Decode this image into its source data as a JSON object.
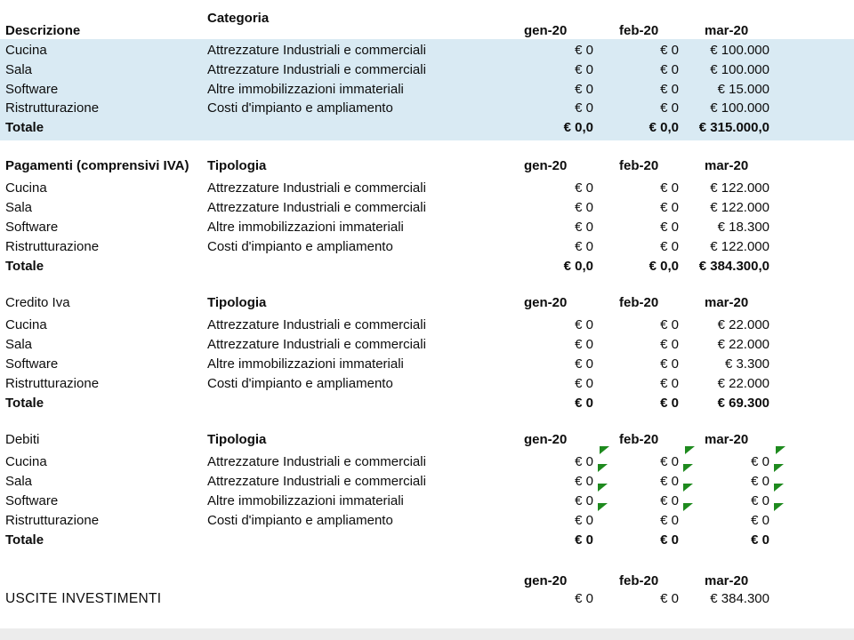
{
  "report": {
    "months": [
      "gen-20",
      "feb-20",
      "mar-20"
    ],
    "sections": [
      {
        "title": "Descrizione",
        "title_bold": true,
        "category_header": "Categoria",
        "category_header_raised": true,
        "highlighted": true,
        "rows": [
          {
            "label": "Cucina",
            "category": "Attrezzature Industriali e commerciali",
            "values": [
              "€ 0",
              "€ 0",
              "€ 100.000"
            ]
          },
          {
            "label": "Sala",
            "category": "Attrezzature Industriali e commerciali",
            "values": [
              "€ 0",
              "€ 0",
              "€ 100.000"
            ]
          },
          {
            "label": "Software",
            "category": "Altre immobilizzazioni immateriali",
            "values": [
              "€ 0",
              "€ 0",
              "€ 15.000"
            ]
          },
          {
            "label": "Ristrutturazione",
            "category": "Costi d'impianto e ampliamento",
            "values": [
              "€ 0",
              "€ 0",
              "€ 100.000"
            ]
          }
        ],
        "total": {
          "label": "Totale",
          "values": [
            "€ 0,0",
            "€ 0,0",
            "€ 315.000,0"
          ]
        }
      },
      {
        "title": "Pagamenti (comprensivi IVA)",
        "title_bold": true,
        "category_header": "Tipologia",
        "rows": [
          {
            "label": "Cucina",
            "category": "Attrezzature Industriali e commerciali",
            "values": [
              "€ 0",
              "€ 0",
              "€ 122.000"
            ]
          },
          {
            "label": "Sala",
            "category": "Attrezzature Industriali e commerciali",
            "values": [
              "€ 0",
              "€ 0",
              "€ 122.000"
            ]
          },
          {
            "label": "Software",
            "category": "Altre immobilizzazioni immateriali",
            "values": [
              "€ 0",
              "€ 0",
              "€ 18.300"
            ]
          },
          {
            "label": "Ristrutturazione",
            "category": "Costi d'impianto e ampliamento",
            "values": [
              "€ 0",
              "€ 0",
              "€ 122.000"
            ]
          }
        ],
        "total": {
          "label": "Totale",
          "values": [
            "€ 0,0",
            "€ 0,0",
            "€ 384.300,0"
          ]
        }
      },
      {
        "title": "Credito Iva",
        "title_bold": false,
        "category_header": "Tipologia",
        "rows": [
          {
            "label": "Cucina",
            "category": "Attrezzature Industriali e commerciali",
            "values": [
              "€ 0",
              "€ 0",
              "€ 22.000"
            ]
          },
          {
            "label": "Sala",
            "category": "Attrezzature Industriali e commerciali",
            "values": [
              "€ 0",
              "€ 0",
              "€ 22.000"
            ]
          },
          {
            "label": "Software",
            "category": "Altre immobilizzazioni immateriali",
            "values": [
              "€ 0",
              "€ 0",
              "€ 3.300"
            ]
          },
          {
            "label": "Ristrutturazione",
            "category": "Costi d'impianto e ampliamento",
            "values": [
              "€ 0",
              "€ 0",
              "€ 22.000"
            ]
          }
        ],
        "total": {
          "label": "Totale",
          "values": [
            "€ 0",
            "€ 0",
            "€ 69.300"
          ]
        }
      },
      {
        "title": "Debiti",
        "title_bold": false,
        "category_header": "Tipologia",
        "header_flags": true,
        "rows": [
          {
            "label": "Cucina",
            "category": "Attrezzature Industriali e commerciali",
            "values": [
              "€ 0",
              "€ 0",
              "€ 0"
            ],
            "flags": true
          },
          {
            "label": "Sala",
            "category": "Attrezzature Industriali e commerciali",
            "values": [
              "€ 0",
              "€ 0",
              "€ 0"
            ],
            "flags": true
          },
          {
            "label": "Software",
            "category": "Altre immobilizzazioni immateriali",
            "values": [
              "€ 0",
              "€ 0",
              "€ 0"
            ],
            "flags": true
          },
          {
            "label": "Ristrutturazione",
            "category": "Costi d'impianto e ampliamento",
            "values": [
              "€ 0",
              "€ 0",
              "€ 0"
            ]
          }
        ],
        "total": {
          "label": "Totale",
          "values": [
            "€ 0",
            "€ 0",
            "€ 0"
          ]
        }
      }
    ],
    "footer": {
      "label": "USCITE INVESTIMENTI",
      "values": [
        "€ 0",
        "€ 0",
        "€ 384.300"
      ]
    }
  },
  "icons": {
    "cell_flag": "green-corner-triangle"
  },
  "colors": {
    "highlight_band": "#d9eaf3",
    "flag_green": "#1e8a1e",
    "text": "#0d0d0d"
  }
}
